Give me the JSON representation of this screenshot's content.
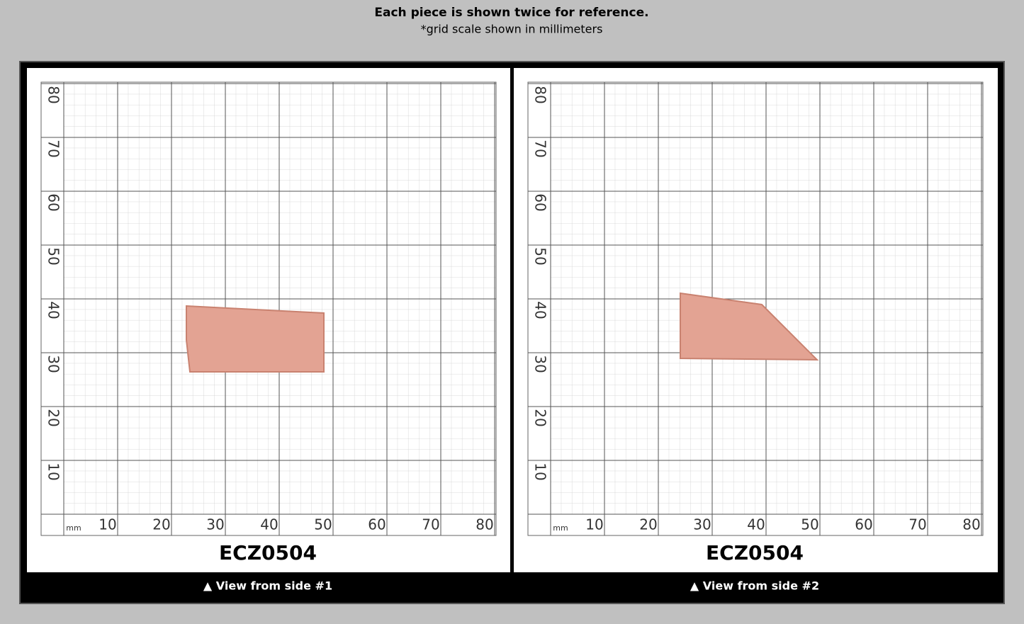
{
  "header": {
    "title": "Each piece is shown twice for reference.",
    "subtitle": "*grid scale shown in millimeters"
  },
  "grid": {
    "unit": "mm",
    "labels": [
      10,
      20,
      30,
      40,
      50,
      60,
      70,
      80
    ]
  },
  "panels": [
    {
      "label": "ECZ0504",
      "caption": "▲ View from side #1"
    },
    {
      "label": "ECZ0504",
      "caption": "▲ View from side #2"
    }
  ]
}
